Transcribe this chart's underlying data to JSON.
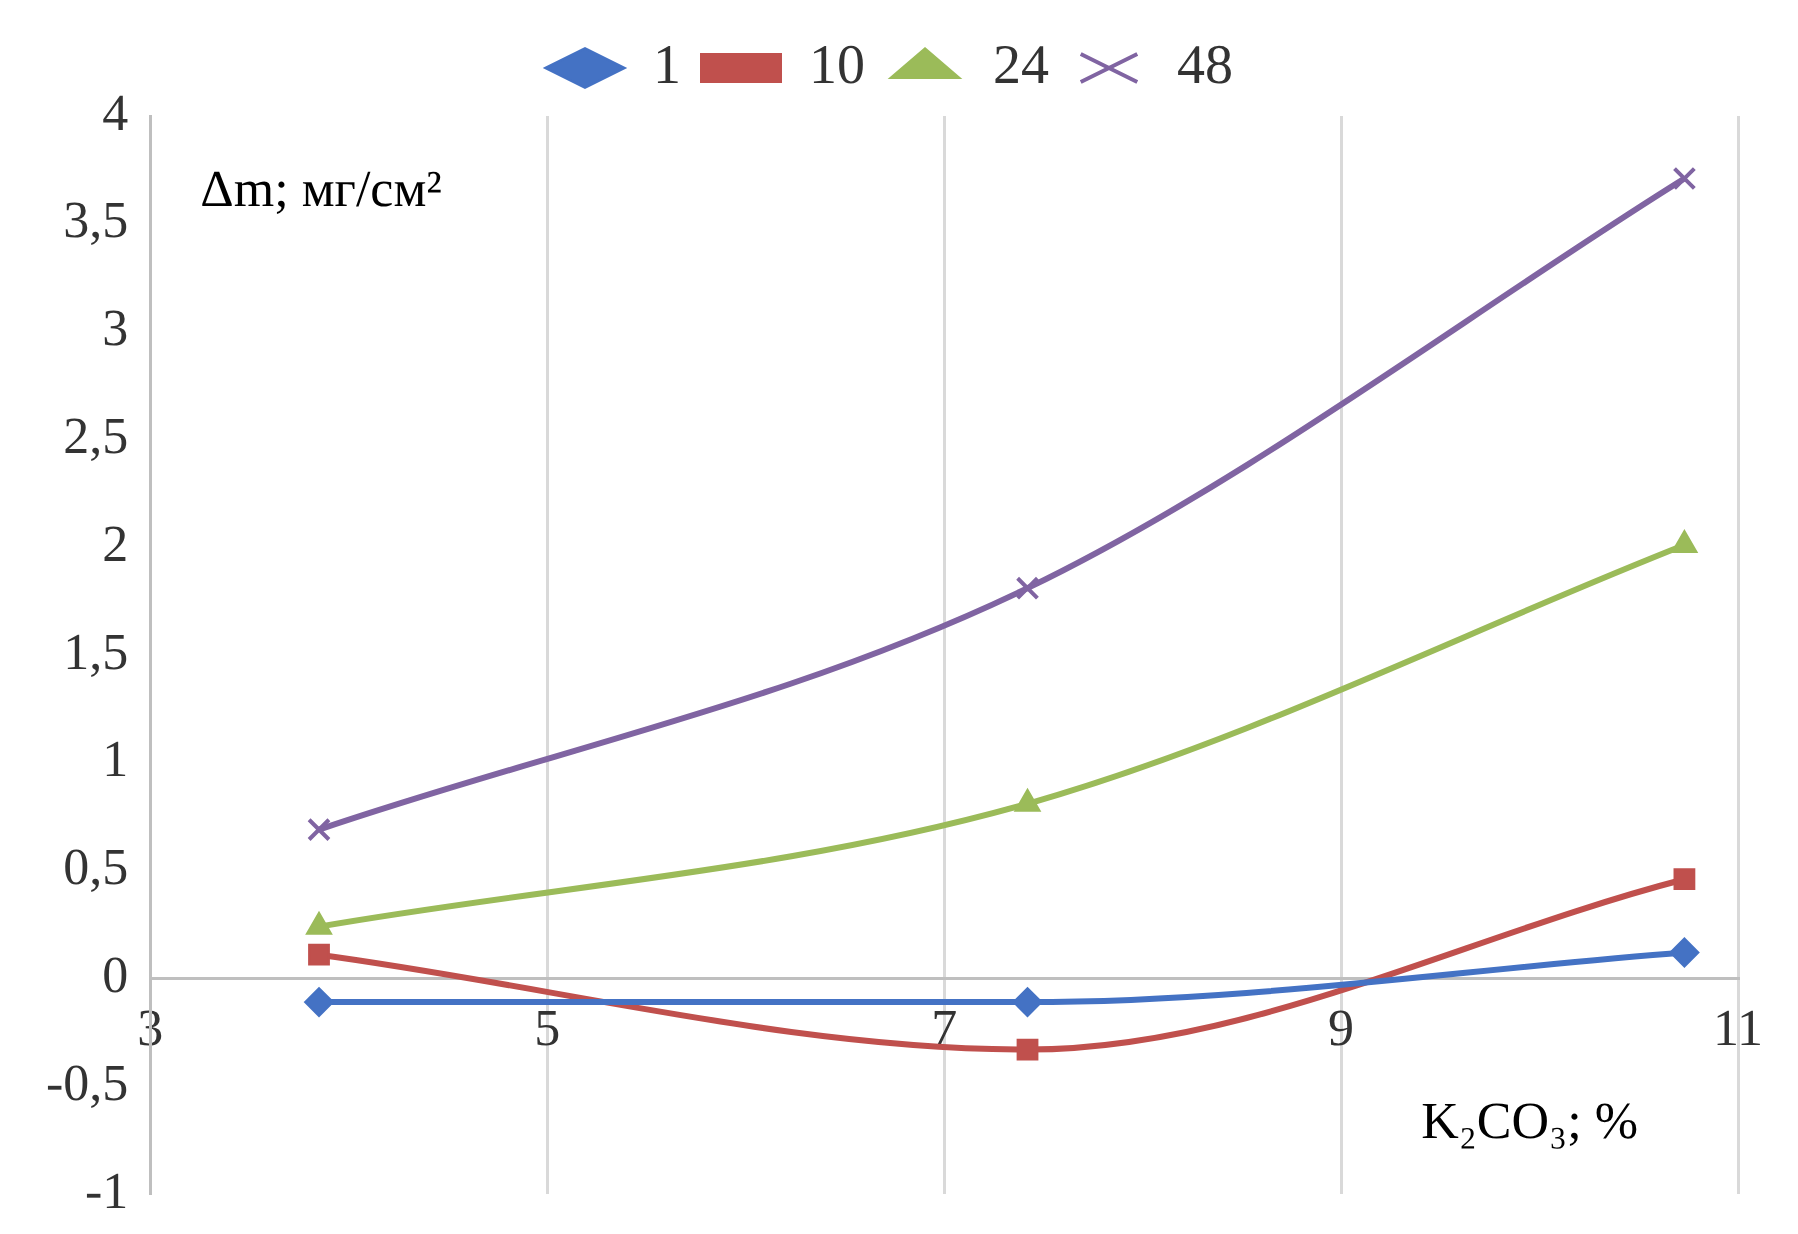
{
  "chart_data": {
    "type": "line",
    "xlabel": "K₂CO₃; %",
    "ylabel": "Δm; мг/см²",
    "x": [
      3.85,
      7.42,
      10.73
    ],
    "series": [
      {
        "name": "1",
        "color": "#4472c4",
        "marker": "diamond",
        "values": [
          -0.11,
          -0.11,
          0.12
        ]
      },
      {
        "name": "10",
        "color": "#c0504d",
        "marker": "square",
        "values": [
          0.11,
          -0.33,
          0.46
        ]
      },
      {
        "name": "24",
        "color": "#9bbb59",
        "marker": "triangle",
        "values": [
          0.24,
          0.81,
          2.01
        ]
      },
      {
        "name": "48",
        "color": "#8064a2",
        "marker": "cross",
        "values": [
          0.69,
          1.81,
          3.71
        ]
      }
    ],
    "xlim": [
      3,
      11
    ],
    "xticks": [
      3,
      5,
      7,
      9,
      11
    ],
    "ylim": [
      -1,
      4
    ],
    "yticks": [
      -1,
      {
        "value": -0.5,
        "label": "-0,5"
      },
      0,
      {
        "value": 0.5,
        "label": "0,5"
      },
      1,
      {
        "value": 1.5,
        "label": "1,5"
      },
      2,
      {
        "value": 2.5,
        "label": "2,5"
      },
      3,
      {
        "value": 3.5,
        "label": "3,5"
      },
      4
    ],
    "grid": "x",
    "legend": "top",
    "line_style": "solid"
  }
}
